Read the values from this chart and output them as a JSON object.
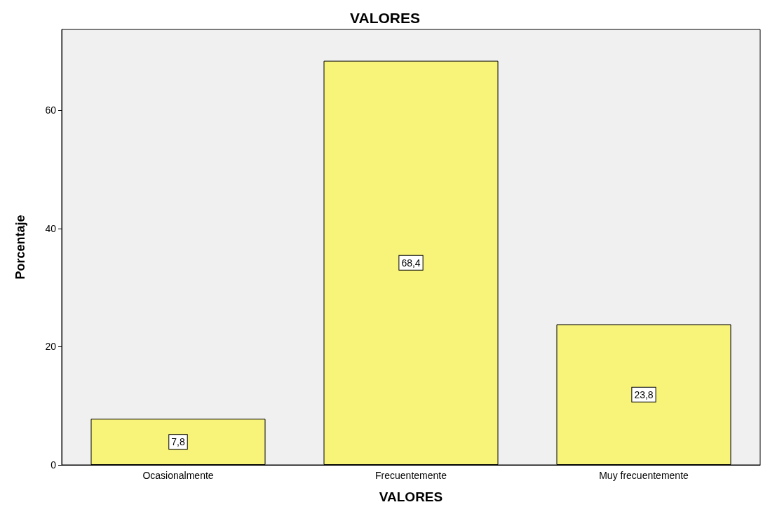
{
  "chart_data": {
    "type": "bar",
    "title": "VALORES",
    "xlabel": "VALORES",
    "ylabel": "Porcentaje",
    "categories": [
      "Ocasionalmente",
      "Frecuentemente",
      "Muy frecuentemente"
    ],
    "values": [
      7.8,
      68.4,
      23.8
    ],
    "value_labels": [
      "7,8",
      "68,4",
      "23,8"
    ],
    "color": "#f8f47a",
    "ylim": [
      0,
      73.7
    ],
    "yticks": [
      0,
      20,
      40,
      60
    ]
  }
}
